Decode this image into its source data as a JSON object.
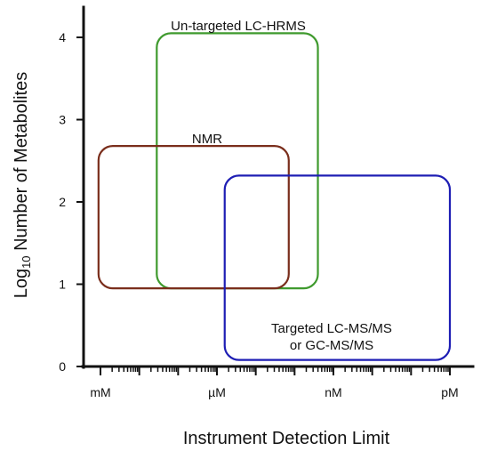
{
  "chart_data": {
    "type": "diagram",
    "xlabel": "Instrument Detection Limit",
    "ylabel_prefix": "Log",
    "ylabel_sub": "10",
    "ylabel_rest": " Number of Metabolites",
    "x_ticks": [
      {
        "label": "mM",
        "exp": 0
      },
      {
        "label": "µM",
        "exp": 3
      },
      {
        "label": "nM",
        "exp": 6
      },
      {
        "label": "pM",
        "exp": 9
      }
    ],
    "x_range": [
      -0.3,
      9.3
    ],
    "y_ticks": [
      0,
      1,
      2,
      3,
      4
    ],
    "y_range": [
      0,
      4.4
    ],
    "regions": [
      {
        "label_lines": [
          "Un-targeted LC-HRMS"
        ],
        "color": "#3f9a2e",
        "x": [
          1.45,
          5.6
        ],
        "y": [
          0.95,
          4.05
        ],
        "label_pos": "top"
      },
      {
        "label_lines": [
          "NMR"
        ],
        "color": "#7a2e1c",
        "x": [
          -0.05,
          4.85
        ],
        "y": [
          0.95,
          2.68
        ],
        "label_pos": "top"
      },
      {
        "label_lines": [
          "Targeted LC-MS/MS",
          "or GC-MS/MS"
        ],
        "color": "#1e1eb4",
        "x": [
          3.2,
          9.0
        ],
        "y": [
          0.08,
          2.32
        ],
        "label_pos": "bottom"
      }
    ]
  }
}
